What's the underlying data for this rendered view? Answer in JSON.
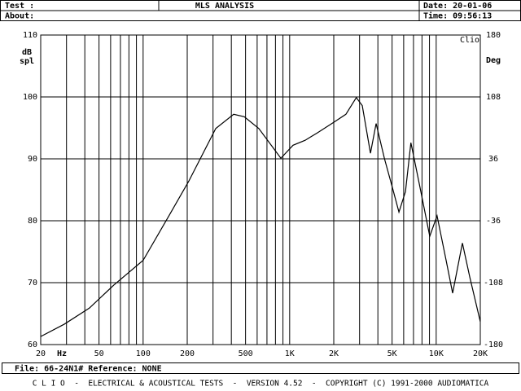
{
  "header": {
    "test_label": "Test :",
    "about_label": "About:",
    "title": "MLS ANALYSIS",
    "date": "Date: 20-01-06",
    "time": "Time: 09:56:13"
  },
  "chart_data": {
    "type": "line",
    "x": [
      20,
      29,
      43,
      63,
      100,
      150,
      205,
      313,
      415,
      490,
      616,
      871,
      1055,
      1276,
      1545,
      2000,
      2420,
      2850,
      3130,
      3560,
      3890,
      4440,
      5020,
      5570,
      6170,
      6720,
      7180,
      7860,
      9040,
      10140,
      11690,
      12950,
      15100,
      16950,
      20000
    ],
    "values": [
      61.3,
      63.3,
      65.9,
      69.6,
      73.6,
      80.8,
      86.4,
      94.9,
      97.2,
      96.8,
      94.9,
      90.1,
      92.2,
      93.0,
      94.2,
      95.9,
      97.2,
      99.9,
      98.6,
      90.9,
      95.7,
      90.0,
      85.4,
      81.4,
      84.7,
      92.6,
      89.3,
      84.7,
      77.5,
      80.8,
      73.6,
      68.3,
      76.4,
      70.9,
      63.7
    ],
    "color": "#000000",
    "xscale": "log",
    "xlim": [
      20,
      20000
    ],
    "xticks": [
      20,
      50,
      100,
      200,
      500,
      {
        "value": 1000,
        "label": "1K"
      },
      {
        "value": 2000,
        "label": "2K"
      },
      {
        "value": 5000,
        "label": "5K"
      },
      {
        "value": 10000,
        "label": "10K"
      },
      {
        "value": 20000,
        "label": "20K"
      }
    ],
    "xgrid": [
      20,
      30,
      40,
      50,
      60,
      70,
      80,
      90,
      100,
      200,
      300,
      400,
      500,
      600,
      700,
      800,
      900,
      1000,
      2000,
      3000,
      4000,
      5000,
      6000,
      7000,
      8000,
      9000,
      10000,
      20000
    ],
    "ylim": [
      60,
      110
    ],
    "yticks": [
      60,
      70,
      80,
      90,
      100,
      110
    ],
    "y2lim": [
      -180,
      180
    ],
    "y2ticks": [
      -180,
      -108,
      -36,
      36,
      108,
      180
    ],
    "y_label_lines": [
      "dB",
      "spl"
    ],
    "y2_label": "Deg",
    "x_unit_label": "Hz",
    "badge": "Clio",
    "grid": true
  },
  "footer": {
    "file": "File: 66-24N1# Reference: NONE",
    "credits": "C L I O  -  ELECTRICAL & ACOUSTICAL TESTS  -  VERSION 4.52  -  COPYRIGHT (C) 1991-2000 AUDIOMATICA"
  }
}
